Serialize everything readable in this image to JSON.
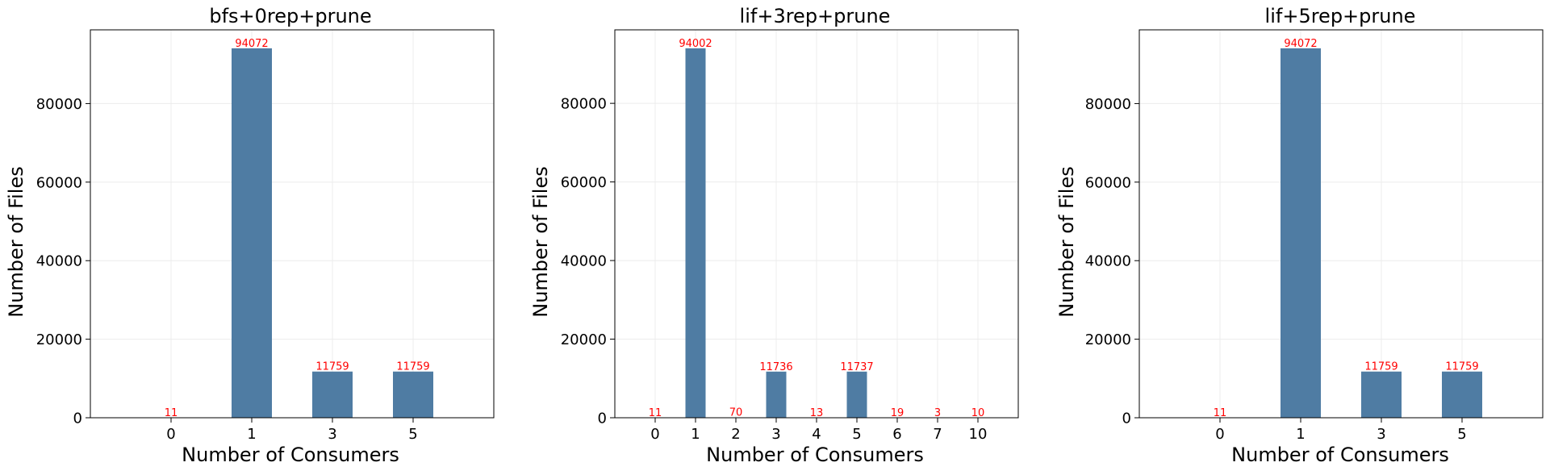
{
  "colors": {
    "bar": "#4f7ca3",
    "bar_label": "#ff0000",
    "grid": "#ececec",
    "axis": "#000000",
    "background": "#ffffff"
  },
  "chart_data": [
    {
      "type": "bar",
      "title": "bfs+0rep+prune",
      "xlabel": "Number of Consumers",
      "ylabel": "Number of Files",
      "categories": [
        "0",
        "1",
        "3",
        "5"
      ],
      "values": [
        11,
        94072,
        11759,
        11759
      ],
      "value_labels": [
        "11",
        "94072",
        "11759",
        "11759"
      ],
      "ylim": [
        0,
        98776
      ],
      "yticks": [
        0,
        20000,
        40000,
        60000,
        80000
      ],
      "ytick_labels": [
        "0",
        "20000",
        "40000",
        "60000",
        "80000"
      ],
      "grid": true
    },
    {
      "type": "bar",
      "title": "lif+3rep+prune",
      "xlabel": "Number of Consumers",
      "ylabel": "Number of Files",
      "categories": [
        "0",
        "1",
        "2",
        "3",
        "4",
        "5",
        "6",
        "7",
        "10"
      ],
      "values": [
        11,
        94002,
        70,
        11736,
        13,
        11737,
        19,
        3,
        10
      ],
      "value_labels": [
        "11",
        "94002",
        "70",
        "11736",
        "13",
        "11737",
        "19",
        "3",
        "10"
      ],
      "ylim": [
        0,
        98702
      ],
      "yticks": [
        0,
        20000,
        40000,
        60000,
        80000
      ],
      "ytick_labels": [
        "0",
        "20000",
        "40000",
        "60000",
        "80000"
      ],
      "grid": true
    },
    {
      "type": "bar",
      "title": "lif+5rep+prune",
      "xlabel": "Number of Consumers",
      "ylabel": "Number of Files",
      "categories": [
        "0",
        "1",
        "3",
        "5"
      ],
      "values": [
        11,
        94072,
        11759,
        11759
      ],
      "value_labels": [
        "11",
        "94072",
        "11759",
        "11759"
      ],
      "ylim": [
        0,
        98776
      ],
      "yticks": [
        0,
        20000,
        40000,
        60000,
        80000
      ],
      "ytick_labels": [
        "0",
        "20000",
        "40000",
        "60000",
        "80000"
      ],
      "grid": true
    }
  ]
}
